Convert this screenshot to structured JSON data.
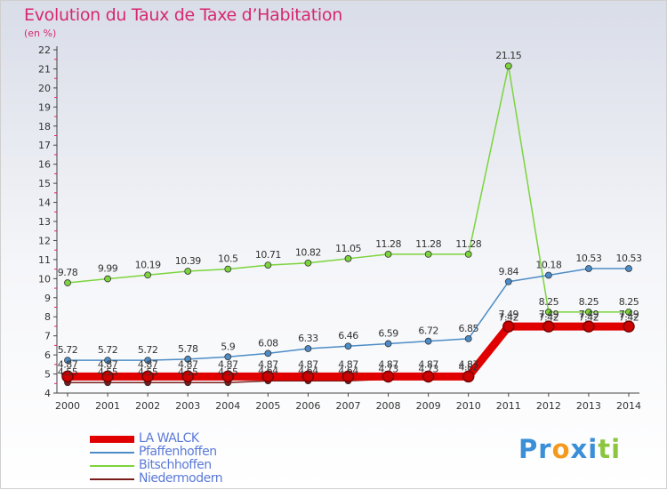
{
  "header": {
    "title": "Evolution du Taux de Taxe d’Habitation",
    "subtitle": "(en %)"
  },
  "chart_data": {
    "type": "line",
    "x": [
      2000,
      2001,
      2002,
      2003,
      2004,
      2005,
      2006,
      2007,
      2008,
      2009,
      2010,
      2011,
      2012,
      2013,
      2014
    ],
    "ylim": [
      4,
      22
    ],
    "yticks": [
      4,
      5,
      6,
      7,
      8,
      9,
      10,
      11,
      12,
      13,
      14,
      15,
      16,
      17,
      18,
      19,
      20,
      21,
      22
    ],
    "grid": false,
    "legend_position": "bottom-left",
    "series": [
      {
        "name": "LA WALCK",
        "color": "#e00000",
        "values": [
          4.87,
          4.87,
          4.87,
          4.87,
          4.87,
          4.87,
          4.87,
          4.87,
          4.87,
          4.87,
          4.87,
          7.49,
          7.49,
          7.49,
          7.49
        ],
        "labels": [
          "4.87",
          "4.87",
          "4.87",
          "4.87",
          "4.87",
          "4.87",
          "4.87",
          "4.87",
          "4.87",
          "4.87",
          "4.87",
          "7.49",
          "7.49",
          "7.49",
          "7.49"
        ]
      },
      {
        "name": "Pfaffenhoffen",
        "color": "#4d8cc6",
        "values": [
          5.72,
          5.72,
          5.72,
          5.78,
          5.9,
          6.08,
          6.33,
          6.46,
          6.59,
          6.72,
          6.85,
          9.84,
          10.18,
          10.53,
          10.53
        ],
        "labels": [
          "5.72",
          "5.72",
          "5.72",
          "5.78",
          "5.9",
          "6.08",
          "6.33",
          "6.46",
          "6.59",
          "6.72",
          "6.85",
          "9.84",
          "10.18",
          "10.53",
          "10.53"
        ]
      },
      {
        "name": "Bitschhoffen",
        "color": "#7cd43c",
        "values": [
          9.78,
          9.99,
          10.19,
          10.39,
          10.5,
          10.71,
          10.82,
          11.05,
          11.28,
          11.28,
          11.28,
          21.15,
          8.25,
          8.25,
          8.25
        ],
        "labels": [
          "9.78",
          "9.99",
          "10.19",
          "10.39",
          "10.5",
          "10.71",
          "10.82",
          "11.05",
          "11.28",
          "11.28",
          "11.28",
          "21.15",
          "8.25",
          "8.25",
          "8.25"
        ]
      },
      {
        "name": "Niedermodern",
        "color": "#7a1c1c",
        "values": [
          4.55,
          4.55,
          4.55,
          4.55,
          4.55,
          4.64,
          4.64,
          4.64,
          4.73,
          4.73,
          4.82,
          7.42,
          7.42,
          7.42,
          7.42
        ],
        "labels": [
          "4.55",
          "4.55",
          "4.55",
          "4.55",
          "4.55",
          "4.64",
          "4.64",
          "4.64",
          "4.73",
          "4.73",
          "4.82",
          "7.42",
          "7.42",
          "7.42",
          "7.42"
        ]
      }
    ]
  },
  "brand": {
    "text": "Proxiti",
    "letters": [
      "P",
      "r",
      "o",
      "x",
      "i",
      "t",
      "i"
    ],
    "colors": [
      "#3a8fd8",
      "#3a8fd8",
      "#f39a1e",
      "#3a8fd8",
      "#3a8fd8",
      "#8cc63f",
      "#8cc63f"
    ]
  }
}
